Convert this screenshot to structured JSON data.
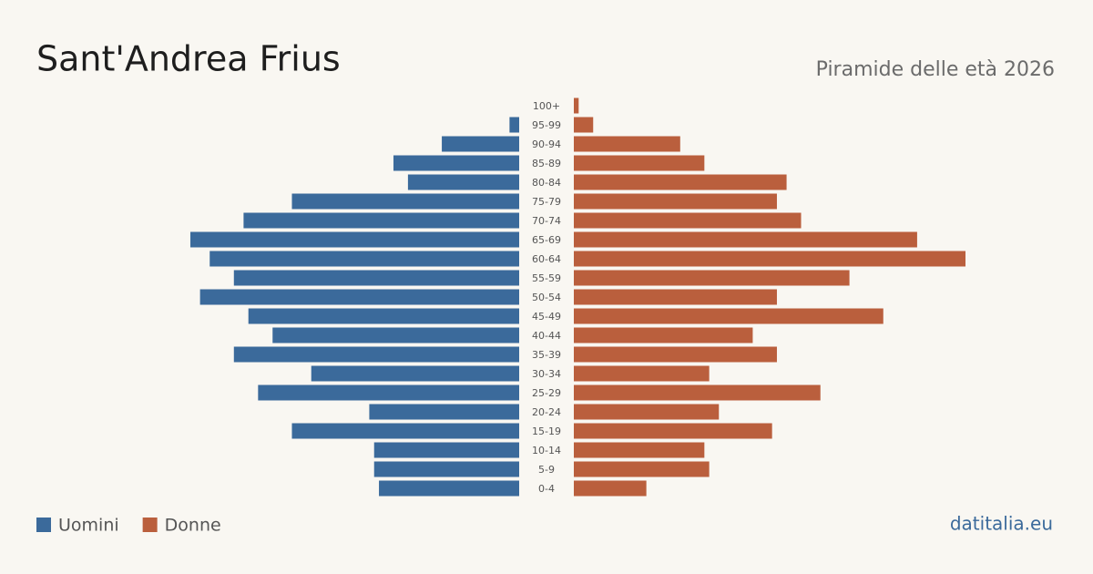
{
  "chart_data": {
    "type": "population-pyramid",
    "title": "Sant'Andrea Frius",
    "subtitle": "Piramide delle età 2026",
    "source": "datitalia.eu",
    "categories": [
      "100+",
      "95-99",
      "90-94",
      "85-89",
      "80-84",
      "75-79",
      "70-74",
      "65-69",
      "60-64",
      "55-59",
      "50-54",
      "45-49",
      "40-44",
      "35-39",
      "30-34",
      "25-29",
      "20-24",
      "15-19",
      "10-14",
      "5-9",
      "0-4"
    ],
    "series": [
      {
        "name": "Uomini",
        "color": "#3b6a9b",
        "values": [
          0,
          2,
          16,
          26,
          23,
          47,
          57,
          68,
          64,
          59,
          66,
          56,
          51,
          59,
          43,
          54,
          31,
          47,
          30,
          30,
          29
        ]
      },
      {
        "name": "Donne",
        "color": "#ba5f3d",
        "values": [
          1,
          4,
          22,
          27,
          44,
          42,
          47,
          71,
          81,
          57,
          42,
          64,
          37,
          42,
          28,
          51,
          30,
          41,
          27,
          28,
          15
        ]
      }
    ],
    "xlim": [
      0,
      81
    ]
  }
}
